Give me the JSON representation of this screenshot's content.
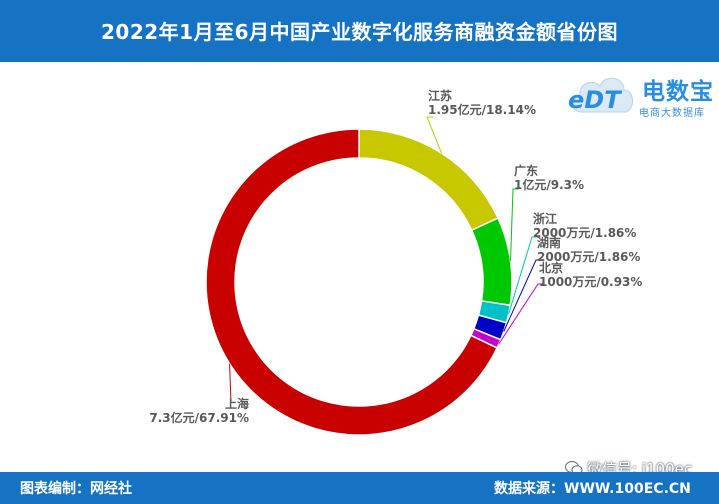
{
  "header": {
    "title": "2022年1月至6月中国产业数字化服务商融资金额省份图"
  },
  "logo": {
    "edt": "eDT",
    "main": "电数宝",
    "sub": "电商大数据库"
  },
  "footer": {
    "left": "图表编制：网经社",
    "right": "数据来源：WWW.100EC.CN"
  },
  "watermark": {
    "text": "微信号: i100ec"
  },
  "chart_data": {
    "type": "pie",
    "title": "2022年1月至6月中国产业数字化服务商融资金额省份图",
    "donut": true,
    "start_angle_deg": 90,
    "slices": [
      {
        "name": "江苏",
        "label": "1.95亿元/18.14%",
        "value": 18.14,
        "color": "#c8c800",
        "side": "right"
      },
      {
        "name": "广东",
        "label": "1亿元/9.3%",
        "value": 9.3,
        "color": "#00c800",
        "side": "right"
      },
      {
        "name": "浙江",
        "label": "2000万元/1.86%",
        "value": 1.86,
        "color": "#00c0c8",
        "side": "right"
      },
      {
        "name": "湖南",
        "label": "2000万元/1.86%",
        "value": 1.86,
        "color": "#0000c8",
        "side": "right"
      },
      {
        "name": "北京",
        "label": "1000万元/0.93%",
        "value": 0.93,
        "color": "#c800c8",
        "side": "right"
      },
      {
        "name": "上海",
        "label": "7.3亿元/67.91%",
        "value": 67.91,
        "color": "#c80000",
        "side": "left"
      }
    ]
  }
}
